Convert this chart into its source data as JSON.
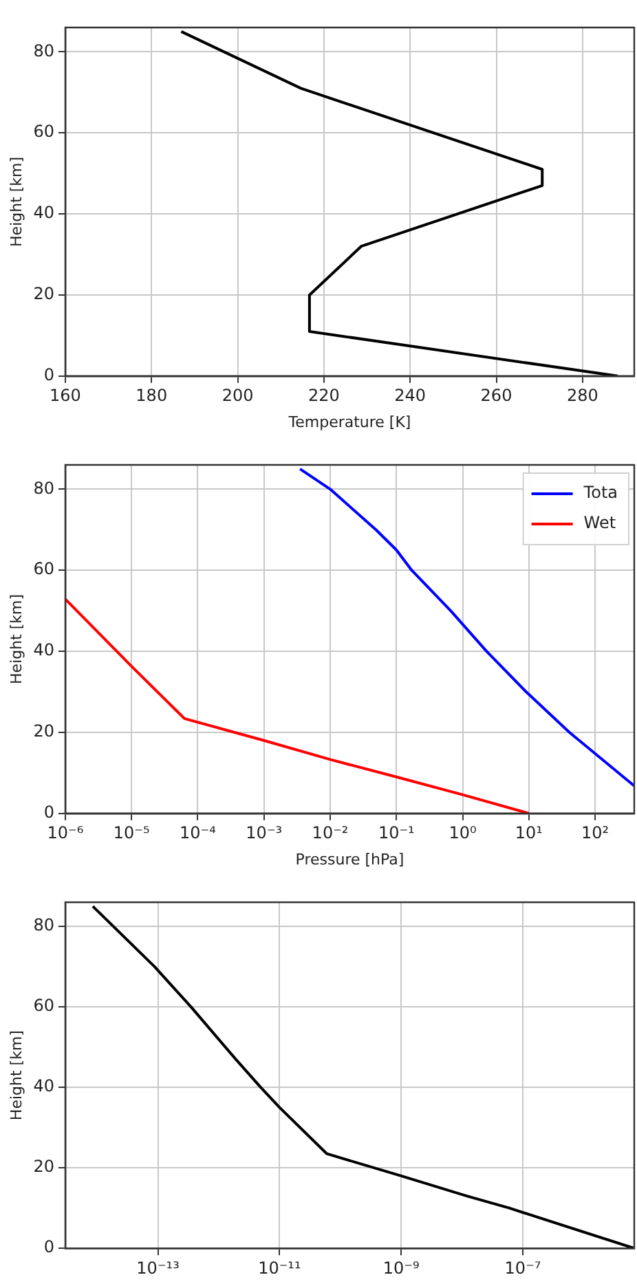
{
  "chart_data": [
    {
      "type": "line",
      "xlabel": "Temperature [K]",
      "ylabel": "Height [km]",
      "xlim": [
        160,
        292
      ],
      "xticks": [
        160,
        180,
        200,
        220,
        240,
        260,
        280
      ],
      "ylim": [
        0,
        86
      ],
      "yticks": [
        0,
        20,
        40,
        60,
        80
      ],
      "grid": true,
      "series": [
        {
          "color": "#000000",
          "x": [
            288.15,
            216.65,
            216.65,
            228.65,
            270.65,
            270.65,
            214.65,
            186.9
          ],
          "values": [
            0,
            11,
            20,
            32,
            47,
            51,
            71,
            85
          ]
        }
      ]
    },
    {
      "type": "line",
      "xlabel": "Pressure [hPa]",
      "ylabel": "Height [km]",
      "log": "x",
      "xlim": [
        1e-06,
        390
      ],
      "xticks": [
        {
          "value": 1e-06,
          "label": "10⁻⁶"
        },
        {
          "value": 1e-05,
          "label": "10⁻⁵"
        },
        {
          "value": 0.0001,
          "label": "10⁻⁴"
        },
        {
          "value": 0.001,
          "label": "10⁻³"
        },
        {
          "value": 0.01,
          "label": "10⁻²"
        },
        {
          "value": 0.1,
          "label": "10⁻¹"
        },
        {
          "value": 1,
          "label": "10⁰"
        },
        {
          "value": 10,
          "label": "10¹"
        },
        {
          "value": 100,
          "label": "10²"
        }
      ],
      "ylim": [
        0,
        86
      ],
      "yticks": [
        0,
        20,
        40,
        60,
        80
      ],
      "grid": true,
      "legend": "top right",
      "series": [
        {
          "name": "Tota",
          "color": "#0000ff",
          "x": [
            390,
            41,
            9.1,
            2.3,
            0.66,
            0.17,
            0.1,
            0.049,
            0.01,
            0.0035
          ],
          "values": [
            6.8,
            20,
            30,
            40,
            50,
            60,
            65,
            70,
            80,
            85
          ]
        },
        {
          "name": "Wet",
          "color": "#ff0000",
          "x": [
            10,
            1,
            0.1,
            0.01,
            0.001,
            6.3e-05,
            1e-05,
            1e-06
          ],
          "values": [
            0,
            4.6,
            9,
            13.3,
            18,
            23.4,
            36.3,
            52.9
          ]
        }
      ]
    },
    {
      "type": "line",
      "ylabel": "Height [km]",
      "log": "x",
      "xlim": [
        3.1e-15,
        6.8e-06
      ],
      "xticks": [
        {
          "value": 1e-13,
          "label": "10⁻¹³"
        },
        {
          "value": 1e-11,
          "label": "10⁻¹¹"
        },
        {
          "value": 1e-09,
          "label": "10⁻⁹"
        },
        {
          "value": 1e-07,
          "label": "10⁻⁷"
        }
      ],
      "ylim": [
        0,
        86
      ],
      "yticks": [
        0,
        20,
        40,
        60,
        80
      ],
      "grid": true,
      "series": [
        {
          "color": "#000000",
          "x": [
            6.8e-06,
            6e-08,
            1.2e-08,
            1e-09,
            6e-11,
            1e-11,
            4.9e-12,
            1.9e-12,
            3.5e-13,
            8.8e-14,
            8.5e-15
          ],
          "values": [
            0,
            10,
            13,
            18,
            23.5,
            35,
            40,
            47,
            60,
            70,
            85
          ]
        }
      ]
    }
  ]
}
